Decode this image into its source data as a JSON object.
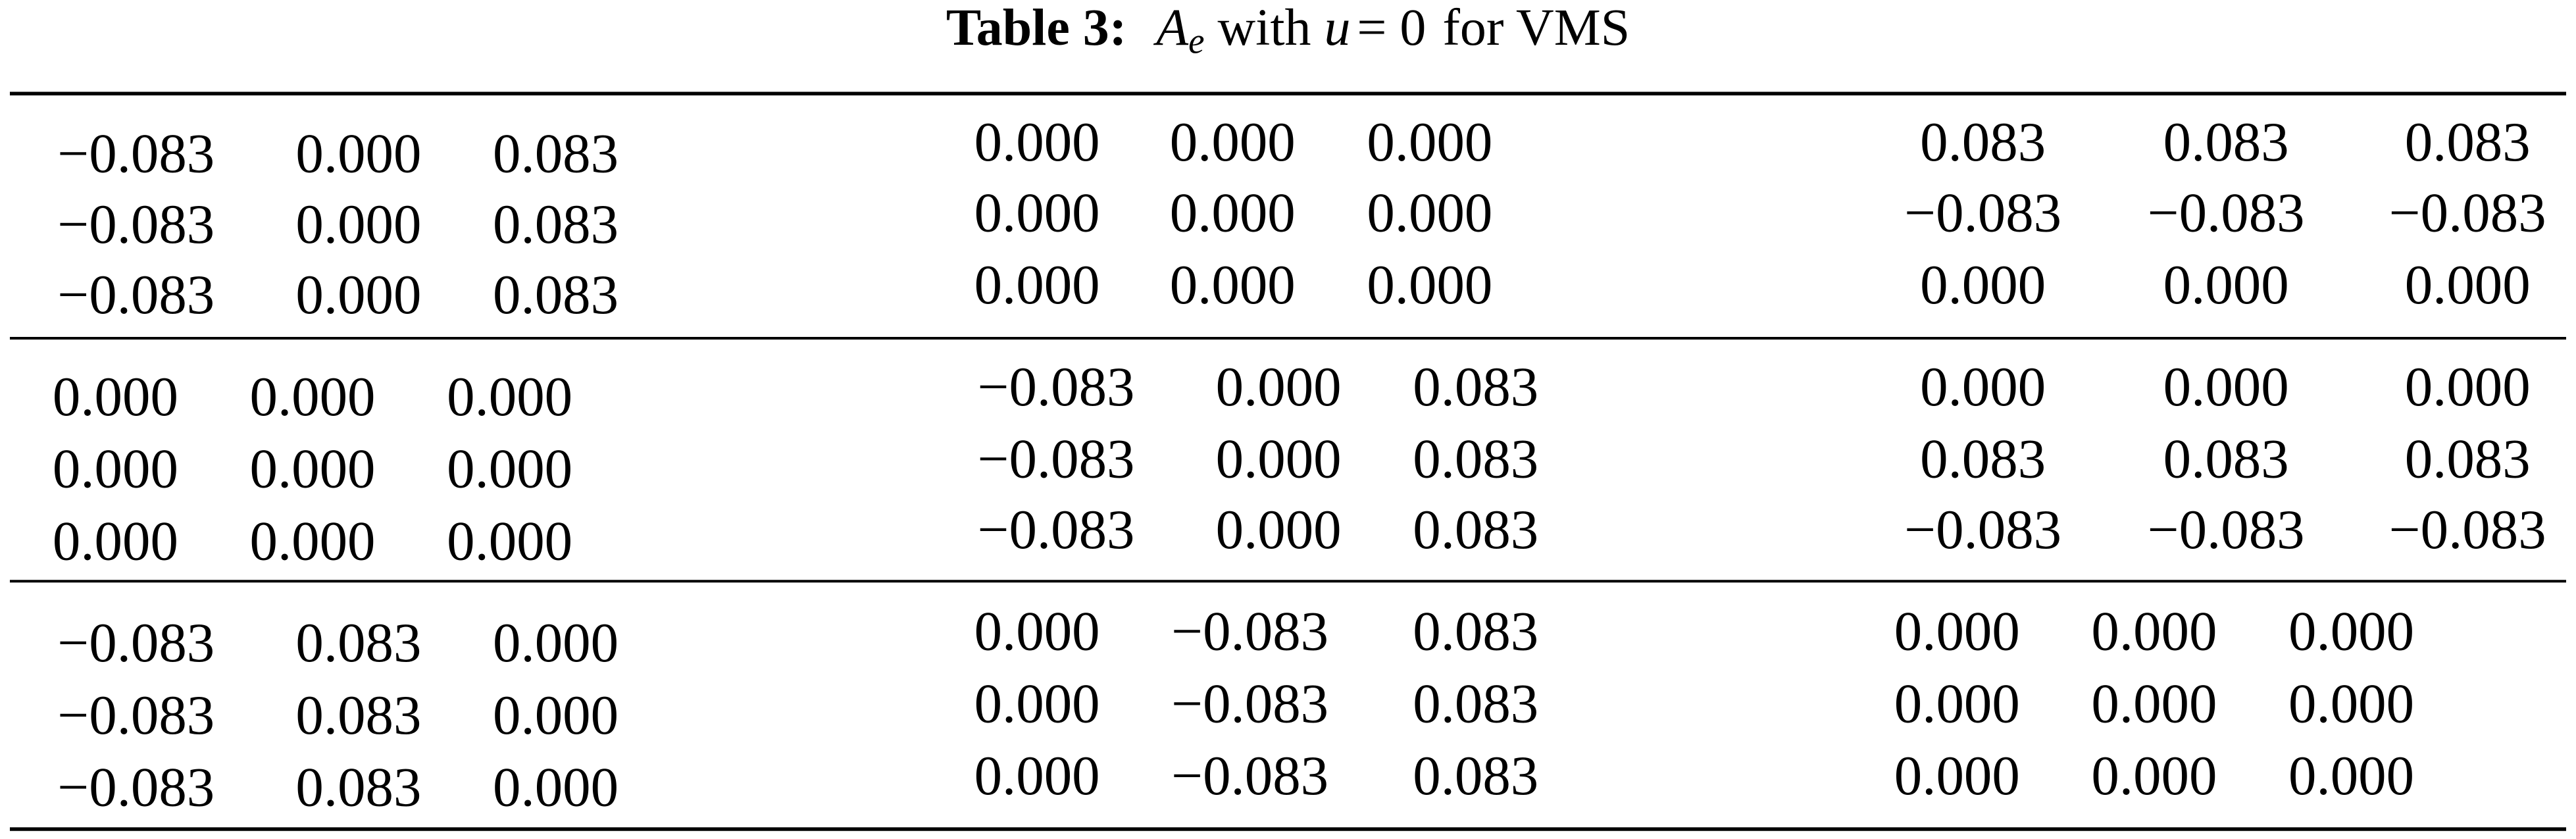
{
  "caption": {
    "label": "Table 3:",
    "symbol": "A",
    "subscript": "e",
    "connector": "with",
    "variable": "u",
    "equation": "= 0",
    "rest": "for VMS"
  },
  "table": {
    "rows": [
      [
        [
          [
            "−0.083",
            "0.000",
            "0.083"
          ],
          [
            "−0.083",
            "0.000",
            "0.083"
          ],
          [
            "−0.083",
            "0.000",
            "0.083"
          ]
        ],
        [
          [
            "0.000",
            "0.000",
            "0.000"
          ],
          [
            "0.000",
            "0.000",
            "0.000"
          ],
          [
            "0.000",
            "0.000",
            "0.000"
          ]
        ],
        [
          [
            "0.083",
            "0.083",
            "0.083"
          ],
          [
            "−0.083",
            "−0.083",
            "−0.083"
          ],
          [
            "0.000",
            "0.000",
            "0.000"
          ]
        ]
      ],
      [
        [
          [
            "0.000",
            "0.000",
            "0.000"
          ],
          [
            "0.000",
            "0.000",
            "0.000"
          ],
          [
            "0.000",
            "0.000",
            "0.000"
          ]
        ],
        [
          [
            "−0.083",
            "0.000",
            "0.083"
          ],
          [
            "−0.083",
            "0.000",
            "0.083"
          ],
          [
            "−0.083",
            "0.000",
            "0.083"
          ]
        ],
        [
          [
            "0.000",
            "0.000",
            "0.000"
          ],
          [
            "0.083",
            "0.083",
            "0.083"
          ],
          [
            "−0.083",
            "−0.083",
            "−0.083"
          ]
        ]
      ],
      [
        [
          [
            "−0.083",
            "0.083",
            "0.000"
          ],
          [
            "−0.083",
            "0.083",
            "0.000"
          ],
          [
            "−0.083",
            "0.083",
            "0.000"
          ]
        ],
        [
          [
            "0.000",
            "−0.083",
            "0.083"
          ],
          [
            "0.000",
            "−0.083",
            "0.083"
          ],
          [
            "0.000",
            "−0.083",
            "0.083"
          ]
        ],
        [
          [
            "0.000",
            "0.000",
            "0.000"
          ],
          [
            "0.000",
            "0.000",
            "0.000"
          ],
          [
            "0.000",
            "0.000",
            "0.000"
          ]
        ]
      ]
    ]
  }
}
